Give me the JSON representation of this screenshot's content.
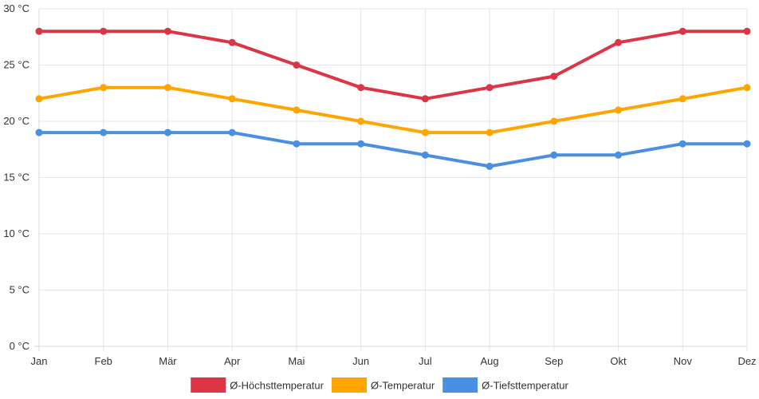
{
  "chart_data": {
    "type": "line",
    "title": "",
    "xlabel": "",
    "ylabel": "",
    "unit_suffix": " °C",
    "categories": [
      "Jan",
      "Feb",
      "Mär",
      "Apr",
      "Mai",
      "Jun",
      "Jul",
      "Aug",
      "Sep",
      "Okt",
      "Nov",
      "Dez"
    ],
    "ylim": [
      0,
      30
    ],
    "yticks": [
      0,
      5,
      10,
      15,
      20,
      25,
      30
    ],
    "ytick_labels": [
      "0 °C",
      "5 °C",
      "10 °C",
      "15 °C",
      "20 °C",
      "25 °C",
      "30 °C"
    ],
    "grid": true,
    "legend_position": "bottom-center",
    "series": [
      {
        "name": "Ø-Höchsttemperatur",
        "color": "#dc3545",
        "values": [
          28,
          28,
          28,
          27,
          25,
          23,
          22,
          23,
          24,
          27,
          28,
          28
        ]
      },
      {
        "name": "Ø-Temperatur",
        "color": "#ffa500",
        "values": [
          22,
          23,
          23,
          22,
          21,
          20,
          19,
          19,
          20,
          21,
          22,
          23
        ]
      },
      {
        "name": "Ø-Tiefsttemperatur",
        "color": "#4a90e2",
        "values": [
          19,
          19,
          19,
          19,
          18,
          18,
          17,
          16,
          17,
          17,
          18,
          18
        ]
      }
    ]
  }
}
